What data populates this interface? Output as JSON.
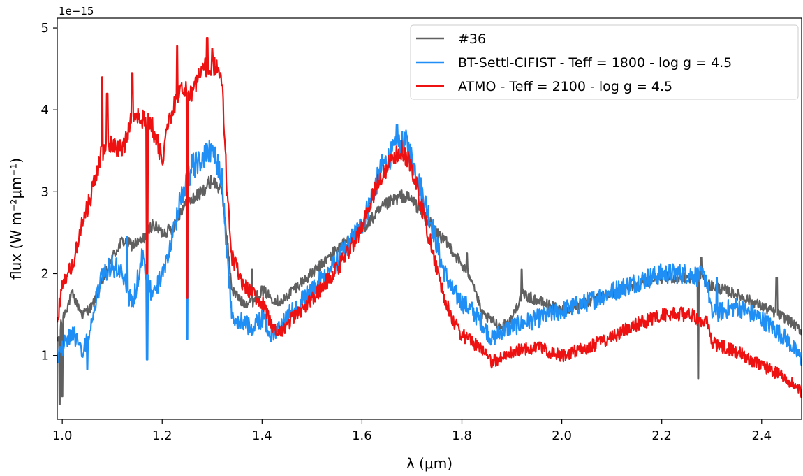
{
  "chart_data": {
    "type": "line",
    "title": "",
    "xlabel": "λ (μm)",
    "ylabel": "flux (W m⁻²μm⁻¹)",
    "y_offset_text": "1e−15",
    "xlim": [
      0.99,
      2.48
    ],
    "ylim": [
      0.22,
      5.12
    ],
    "x_ticks": [
      1.0,
      1.2,
      1.4,
      1.6,
      1.8,
      2.0,
      2.2,
      2.4
    ],
    "x_tick_labels": [
      "1.0",
      "1.2",
      "1.4",
      "1.6",
      "1.8",
      "2.0",
      "2.2",
      "2.4"
    ],
    "y_ticks": [
      1,
      2,
      3,
      4,
      5
    ],
    "y_tick_labels": [
      "1",
      "2",
      "3",
      "4",
      "5"
    ],
    "grid": false,
    "legend_position": "top-right",
    "series": [
      {
        "name": "#36",
        "color": "#606060",
        "noise": 0.07,
        "points": [
          [
            0.99,
            1.15
          ],
          [
            1.0,
            1.45
          ],
          [
            1.02,
            1.75
          ],
          [
            1.04,
            1.5
          ],
          [
            1.06,
            1.6
          ],
          [
            1.08,
            1.9
          ],
          [
            1.1,
            2.2
          ],
          [
            1.12,
            2.4
          ],
          [
            1.14,
            2.35
          ],
          [
            1.16,
            2.4
          ],
          [
            1.18,
            2.6
          ],
          [
            1.2,
            2.5
          ],
          [
            1.22,
            2.55
          ],
          [
            1.24,
            2.8
          ],
          [
            1.26,
            2.9
          ],
          [
            1.28,
            3.0
          ],
          [
            1.3,
            3.15
          ],
          [
            1.32,
            3.0
          ],
          [
            1.33,
            2.4
          ],
          [
            1.34,
            1.8
          ],
          [
            1.36,
            1.65
          ],
          [
            1.38,
            1.65
          ],
          [
            1.4,
            1.8
          ],
          [
            1.42,
            1.7
          ],
          [
            1.44,
            1.65
          ],
          [
            1.46,
            1.8
          ],
          [
            1.5,
            2.0
          ],
          [
            1.55,
            2.3
          ],
          [
            1.6,
            2.55
          ],
          [
            1.65,
            2.85
          ],
          [
            1.68,
            2.95
          ],
          [
            1.7,
            2.9
          ],
          [
            1.72,
            2.75
          ],
          [
            1.75,
            2.5
          ],
          [
            1.78,
            2.3
          ],
          [
            1.8,
            2.1
          ],
          [
            1.82,
            1.95
          ],
          [
            1.84,
            1.5
          ],
          [
            1.88,
            1.35
          ],
          [
            1.9,
            1.45
          ],
          [
            1.92,
            1.75
          ],
          [
            1.96,
            1.65
          ],
          [
            2.0,
            1.55
          ],
          [
            2.05,
            1.65
          ],
          [
            2.1,
            1.75
          ],
          [
            2.15,
            1.88
          ],
          [
            2.2,
            1.95
          ],
          [
            2.25,
            1.95
          ],
          [
            2.28,
            1.95
          ],
          [
            2.3,
            1.85
          ],
          [
            2.35,
            1.75
          ],
          [
            2.4,
            1.6
          ],
          [
            2.45,
            1.45
          ],
          [
            2.48,
            1.3
          ]
        ],
        "spikes": [
          [
            0.995,
            0.4
          ],
          [
            1.0,
            0.5
          ],
          [
            1.3,
            3.1
          ],
          [
            1.38,
            2.05
          ],
          [
            1.81,
            2.25
          ],
          [
            1.92,
            2.05
          ],
          [
            2.273,
            0.72
          ],
          [
            2.28,
            2.2
          ],
          [
            2.43,
            1.95
          ]
        ]
      },
      {
        "name": "BT-Settl-CIFIST - Teff = 1800 - log g = 4.5",
        "color": "#1f8ef5",
        "noise": 0.13,
        "points": [
          [
            0.99,
            1.0
          ],
          [
            1.0,
            1.1
          ],
          [
            1.02,
            1.3
          ],
          [
            1.04,
            1.0
          ],
          [
            1.06,
            1.4
          ],
          [
            1.08,
            2.0
          ],
          [
            1.1,
            2.1
          ],
          [
            1.12,
            2.0
          ],
          [
            1.14,
            1.6
          ],
          [
            1.16,
            2.2
          ],
          [
            1.18,
            1.7
          ],
          [
            1.2,
            2.0
          ],
          [
            1.22,
            2.4
          ],
          [
            1.24,
            3.0
          ],
          [
            1.26,
            3.3
          ],
          [
            1.28,
            3.4
          ],
          [
            1.3,
            3.5
          ],
          [
            1.32,
            3.2
          ],
          [
            1.33,
            2.2
          ],
          [
            1.34,
            1.5
          ],
          [
            1.36,
            1.4
          ],
          [
            1.38,
            1.35
          ],
          [
            1.4,
            1.45
          ],
          [
            1.42,
            1.25
          ],
          [
            1.44,
            1.4
          ],
          [
            1.46,
            1.55
          ],
          [
            1.5,
            1.8
          ],
          [
            1.55,
            2.15
          ],
          [
            1.6,
            2.6
          ],
          [
            1.64,
            3.3
          ],
          [
            1.67,
            3.55
          ],
          [
            1.69,
            3.6
          ],
          [
            1.71,
            3.2
          ],
          [
            1.74,
            2.6
          ],
          [
            1.76,
            2.1
          ],
          [
            1.78,
            1.8
          ],
          [
            1.8,
            1.65
          ],
          [
            1.82,
            1.55
          ],
          [
            1.84,
            1.4
          ],
          [
            1.86,
            1.2
          ],
          [
            1.88,
            1.3
          ],
          [
            1.9,
            1.35
          ],
          [
            1.95,
            1.45
          ],
          [
            2.0,
            1.55
          ],
          [
            2.05,
            1.65
          ],
          [
            2.1,
            1.78
          ],
          [
            2.15,
            1.9
          ],
          [
            2.2,
            2.0
          ],
          [
            2.25,
            2.0
          ],
          [
            2.29,
            1.95
          ],
          [
            2.3,
            1.5
          ],
          [
            2.35,
            1.6
          ],
          [
            2.4,
            1.45
          ],
          [
            2.45,
            1.2
          ],
          [
            2.48,
            0.95
          ]
        ],
        "spikes": [
          [
            1.05,
            0.83
          ],
          [
            1.13,
            2.45
          ],
          [
            1.17,
            0.95
          ],
          [
            1.25,
            1.2
          ],
          [
            1.67,
            3.82
          ],
          [
            2.31,
            1.95
          ]
        ]
      },
      {
        "name": "ATMO - Teff = 2100 - log g = 4.5",
        "color": "#ee1111",
        "noise": 0.1,
        "points": [
          [
            0.99,
            1.4
          ],
          [
            1.0,
            1.9
          ],
          [
            1.02,
            2.1
          ],
          [
            1.04,
            2.6
          ],
          [
            1.06,
            3.0
          ],
          [
            1.08,
            3.5
          ],
          [
            1.1,
            3.6
          ],
          [
            1.12,
            3.5
          ],
          [
            1.14,
            3.9
          ],
          [
            1.16,
            3.9
          ],
          [
            1.18,
            3.8
          ],
          [
            1.2,
            3.4
          ],
          [
            1.22,
            4.0
          ],
          [
            1.24,
            4.3
          ],
          [
            1.26,
            4.2
          ],
          [
            1.28,
            4.5
          ],
          [
            1.3,
            4.55
          ],
          [
            1.31,
            4.5
          ],
          [
            1.32,
            4.3
          ],
          [
            1.33,
            3.0
          ],
          [
            1.34,
            2.2
          ],
          [
            1.36,
            1.9
          ],
          [
            1.38,
            1.75
          ],
          [
            1.4,
            1.65
          ],
          [
            1.42,
            1.35
          ],
          [
            1.44,
            1.3
          ],
          [
            1.46,
            1.45
          ],
          [
            1.5,
            1.7
          ],
          [
            1.55,
            2.05
          ],
          [
            1.6,
            2.55
          ],
          [
            1.63,
            3.1
          ],
          [
            1.66,
            3.4
          ],
          [
            1.68,
            3.5
          ],
          [
            1.7,
            3.3
          ],
          [
            1.72,
            2.8
          ],
          [
            1.74,
            2.3
          ],
          [
            1.76,
            1.8
          ],
          [
            1.78,
            1.45
          ],
          [
            1.8,
            1.25
          ],
          [
            1.82,
            1.18
          ],
          [
            1.84,
            1.05
          ],
          [
            1.86,
            0.92
          ],
          [
            1.88,
            0.98
          ],
          [
            1.9,
            1.05
          ],
          [
            1.95,
            1.1
          ],
          [
            2.0,
            1.0
          ],
          [
            2.05,
            1.1
          ],
          [
            2.1,
            1.22
          ],
          [
            2.15,
            1.38
          ],
          [
            2.2,
            1.5
          ],
          [
            2.25,
            1.5
          ],
          [
            2.29,
            1.42
          ],
          [
            2.3,
            1.15
          ],
          [
            2.35,
            1.05
          ],
          [
            2.4,
            0.88
          ],
          [
            2.45,
            0.72
          ],
          [
            2.48,
            0.55
          ]
        ],
        "spikes": [
          [
            1.08,
            4.4
          ],
          [
            1.09,
            4.2
          ],
          [
            1.14,
            4.45
          ],
          [
            1.17,
            2.0
          ],
          [
            1.23,
            4.78
          ],
          [
            1.25,
            1.7
          ],
          [
            1.29,
            4.88
          ],
          [
            1.3,
            4.75
          ]
        ]
      }
    ]
  }
}
